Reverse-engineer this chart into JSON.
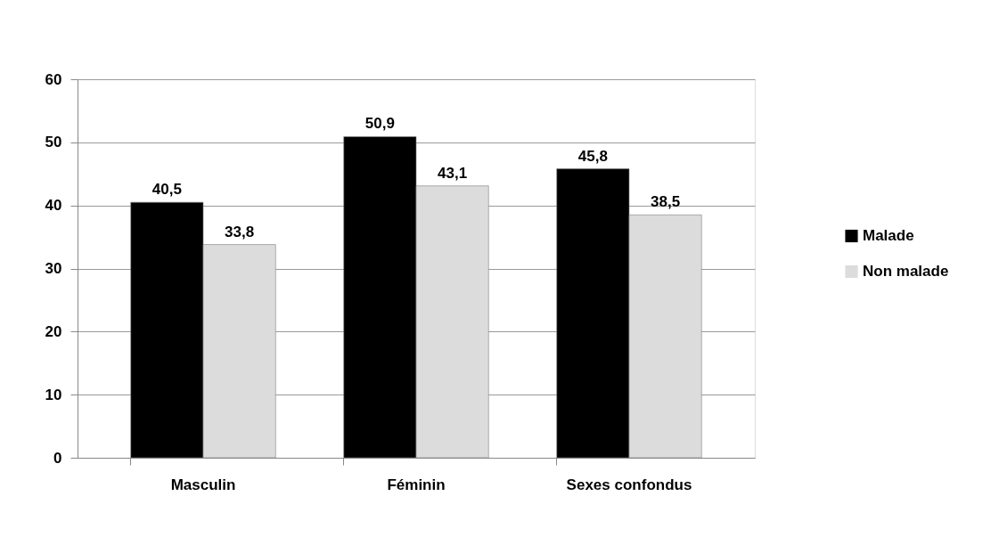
{
  "chart_data": {
    "type": "bar",
    "categories": [
      "Masculin",
      "Féminin",
      "Sexes confondus"
    ],
    "series": [
      {
        "name": "Malade",
        "color": "#000000",
        "values": [
          40.5,
          50.9,
          45.8
        ],
        "value_labels": [
          "40,5",
          "50,9",
          "45,8"
        ]
      },
      {
        "name": "Non malade",
        "color": "#dcdcdc",
        "values": [
          33.8,
          43.1,
          38.5
        ],
        "value_labels": [
          "33,8",
          "43,1",
          "38,5"
        ]
      }
    ],
    "ylim": [
      0,
      60
    ],
    "yticks": [
      0,
      10,
      20,
      30,
      40,
      50,
      60
    ],
    "grid": "y",
    "legend": "right"
  }
}
